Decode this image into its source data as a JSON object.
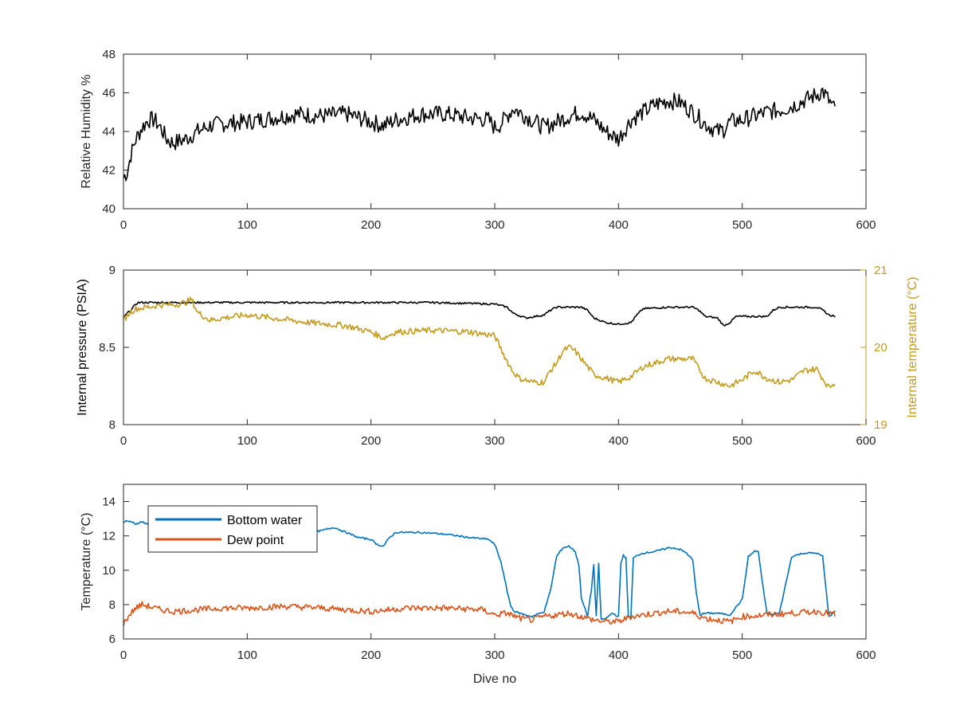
{
  "colors": {
    "axes": "#262626",
    "black_series": "#000000",
    "blue": "#0072BD",
    "orange": "#D95319",
    "gold": "#C39B1E"
  },
  "chart_data": [
    {
      "type": "line",
      "id": "humidity",
      "xlabel": "",
      "ylabel": "Relative Humidity %",
      "xlim": [
        0,
        600
      ],
      "ylim": [
        40,
        48
      ],
      "xticks": [
        0,
        100,
        200,
        300,
        400,
        500,
        600
      ],
      "yticks": [
        40,
        42,
        44,
        46,
        48
      ],
      "series": [
        {
          "color": "#000000",
          "noise": 0.45,
          "x": [
            0,
            3,
            6,
            10,
            15,
            20,
            25,
            30,
            35,
            40,
            50,
            60,
            70,
            80,
            100,
            120,
            140,
            160,
            180,
            200,
            210,
            220,
            240,
            260,
            280,
            295,
            300,
            305,
            310,
            315,
            320,
            330,
            340,
            350,
            360,
            370,
            380,
            390,
            400,
            410,
            420,
            430,
            440,
            450,
            460,
            470,
            480,
            485,
            490,
            500,
            510,
            520,
            530,
            540,
            550,
            560,
            565,
            570,
            575
          ],
          "y": [
            41.6,
            41.9,
            42.8,
            43.6,
            44.2,
            44.6,
            44.6,
            44.2,
            43.6,
            43.4,
            43.6,
            44.0,
            44.3,
            44.4,
            44.5,
            44.7,
            44.9,
            44.8,
            44.9,
            44.5,
            44.3,
            44.6,
            44.9,
            44.9,
            44.7,
            44.6,
            44.2,
            44.4,
            44.8,
            45.2,
            45.0,
            44.6,
            44.2,
            44.5,
            44.8,
            45.0,
            44.6,
            44.0,
            43.6,
            44.6,
            45.0,
            45.4,
            45.6,
            45.5,
            45.0,
            44.4,
            44.0,
            44.1,
            44.5,
            44.6,
            44.8,
            45.0,
            45.1,
            45.3,
            45.6,
            45.9,
            46.1,
            45.6,
            45.1
          ]
        }
      ]
    },
    {
      "type": "line",
      "id": "pressure-temperature",
      "xlabel": "",
      "ylabel": "Internal pressure (PSIA)",
      "ylabel_right": "Internal temperature (°C)",
      "xlim": [
        0,
        600
      ],
      "ylim": [
        8,
        9
      ],
      "ylim_right": [
        19,
        21
      ],
      "xticks": [
        0,
        100,
        200,
        300,
        400,
        500,
        600
      ],
      "yticks": [
        8,
        8.5,
        9
      ],
      "yticks_right": [
        19,
        20,
        21
      ],
      "series": [
        {
          "axis": "left",
          "color": "#000000",
          "noise": 0.006,
          "x": [
            0,
            3,
            7,
            10,
            12,
            50,
            100,
            150,
            200,
            250,
            300,
            310,
            315,
            325,
            340,
            345,
            350,
            360,
            370,
            375,
            380,
            390,
            400,
            410,
            415,
            420,
            440,
            460,
            465,
            470,
            480,
            485,
            490,
            495,
            500,
            520,
            525,
            530,
            550,
            560,
            565,
            570,
            575
          ],
          "y": [
            8.69,
            8.72,
            8.75,
            8.78,
            8.79,
            8.79,
            8.79,
            8.79,
            8.79,
            8.79,
            8.78,
            8.76,
            8.72,
            8.69,
            8.71,
            8.74,
            8.76,
            8.76,
            8.76,
            8.74,
            8.69,
            8.66,
            8.65,
            8.66,
            8.71,
            8.75,
            8.76,
            8.76,
            8.74,
            8.7,
            8.69,
            8.64,
            8.66,
            8.7,
            8.7,
            8.7,
            8.74,
            8.76,
            8.76,
            8.76,
            8.74,
            8.71,
            8.7
          ]
        },
        {
          "axis": "right",
          "color": "#C39B1E",
          "noise": 0.04,
          "x": [
            0,
            5,
            10,
            20,
            30,
            40,
            50,
            55,
            60,
            70,
            80,
            100,
            120,
            150,
            180,
            200,
            210,
            220,
            250,
            280,
            300,
            305,
            310,
            315,
            320,
            330,
            340,
            345,
            350,
            355,
            360,
            365,
            370,
            380,
            390,
            400,
            410,
            420,
            430,
            440,
            450,
            460,
            465,
            470,
            480,
            490,
            500,
            510,
            520,
            530,
            540,
            550,
            560,
            565,
            570,
            575
          ],
          "y": [
            20.35,
            20.45,
            20.5,
            20.52,
            20.55,
            20.55,
            20.58,
            20.62,
            20.45,
            20.35,
            20.38,
            20.42,
            20.38,
            20.32,
            20.28,
            20.2,
            20.12,
            20.2,
            20.22,
            20.2,
            20.15,
            19.98,
            19.82,
            19.68,
            19.6,
            19.55,
            19.55,
            19.7,
            19.8,
            19.95,
            20.0,
            19.95,
            19.85,
            19.65,
            19.6,
            19.55,
            19.62,
            19.75,
            19.8,
            19.85,
            19.85,
            19.85,
            19.72,
            19.6,
            19.55,
            19.5,
            19.58,
            19.7,
            19.6,
            19.55,
            19.58,
            19.7,
            19.72,
            19.6,
            19.48,
            19.55
          ]
        }
      ]
    },
    {
      "type": "line",
      "id": "temperature",
      "xlabel": "Dive no",
      "ylabel": "Temperature (°C)",
      "xlim": [
        0,
        600
      ],
      "ylim": [
        6,
        15
      ],
      "xticks": [
        0,
        100,
        200,
        300,
        400,
        500,
        600
      ],
      "yticks": [
        6,
        8,
        10,
        12,
        14
      ],
      "legend": "top-left",
      "series": [
        {
          "name": "Bottom water",
          "color": "#0072BD",
          "noise": 0.05,
          "x": [
            0,
            5,
            10,
            15,
            20,
            40,
            60,
            80,
            100,
            120,
            140,
            160,
            170,
            180,
            190,
            200,
            205,
            210,
            215,
            220,
            240,
            260,
            280,
            295,
            300,
            305,
            310,
            313,
            316,
            320,
            330,
            340,
            345,
            350,
            355,
            360,
            365,
            368,
            370,
            375,
            378,
            380,
            382,
            384,
            386,
            390,
            395,
            400,
            402,
            404,
            406,
            408,
            410,
            412,
            414,
            416,
            420,
            430,
            440,
            445,
            450,
            455,
            460,
            463,
            466,
            470,
            480,
            490,
            500,
            505,
            510,
            513,
            516,
            520,
            525,
            530,
            540,
            550,
            560,
            565,
            570,
            575
          ],
          "y": [
            12.8,
            12.9,
            12.7,
            12.8,
            12.7,
            12.3,
            12.3,
            12.2,
            12.2,
            12.3,
            12.1,
            12.3,
            12.5,
            12.2,
            11.9,
            11.8,
            11.5,
            11.4,
            11.9,
            12.2,
            12.2,
            12.1,
            11.9,
            11.8,
            11.5,
            10.5,
            8.8,
            7.9,
            7.6,
            7.5,
            7.3,
            7.6,
            8.8,
            10.8,
            11.3,
            11.4,
            11.1,
            10.3,
            8.4,
            7.3,
            8.8,
            10.3,
            7.3,
            10.4,
            7.1,
            7.2,
            7.5,
            7.3,
            10.4,
            10.9,
            10.7,
            7.3,
            7.2,
            10.7,
            10.8,
            10.9,
            11.0,
            11.1,
            11.3,
            11.3,
            11.2,
            11.0,
            10.6,
            8.6,
            7.4,
            7.5,
            7.5,
            7.4,
            8.3,
            10.8,
            11.1,
            11.1,
            9.4,
            7.5,
            7.4,
            7.5,
            10.8,
            11.0,
            11.0,
            10.8,
            7.3,
            7.6
          ]
        },
        {
          "name": "Dew point",
          "color": "#D95319",
          "noise": 0.18,
          "x": [
            0,
            3,
            6,
            10,
            15,
            20,
            30,
            40,
            60,
            80,
            100,
            130,
            160,
            200,
            230,
            260,
            290,
            300,
            310,
            320,
            330,
            340,
            350,
            360,
            370,
            380,
            390,
            400,
            410,
            420,
            440,
            450,
            460,
            470,
            480,
            490,
            500,
            520,
            540,
            560,
            570,
            575
          ],
          "y": [
            6.9,
            7.2,
            7.5,
            7.8,
            8.0,
            7.9,
            7.7,
            7.6,
            7.7,
            7.8,
            7.8,
            7.9,
            7.8,
            7.6,
            7.8,
            7.8,
            7.7,
            7.4,
            7.5,
            7.2,
            7.1,
            7.3,
            7.4,
            7.5,
            7.3,
            7.1,
            7.0,
            7.0,
            7.3,
            7.4,
            7.6,
            7.6,
            7.5,
            7.2,
            7.1,
            7.0,
            7.3,
            7.4,
            7.5,
            7.6,
            7.5,
            7.4
          ]
        }
      ]
    }
  ]
}
